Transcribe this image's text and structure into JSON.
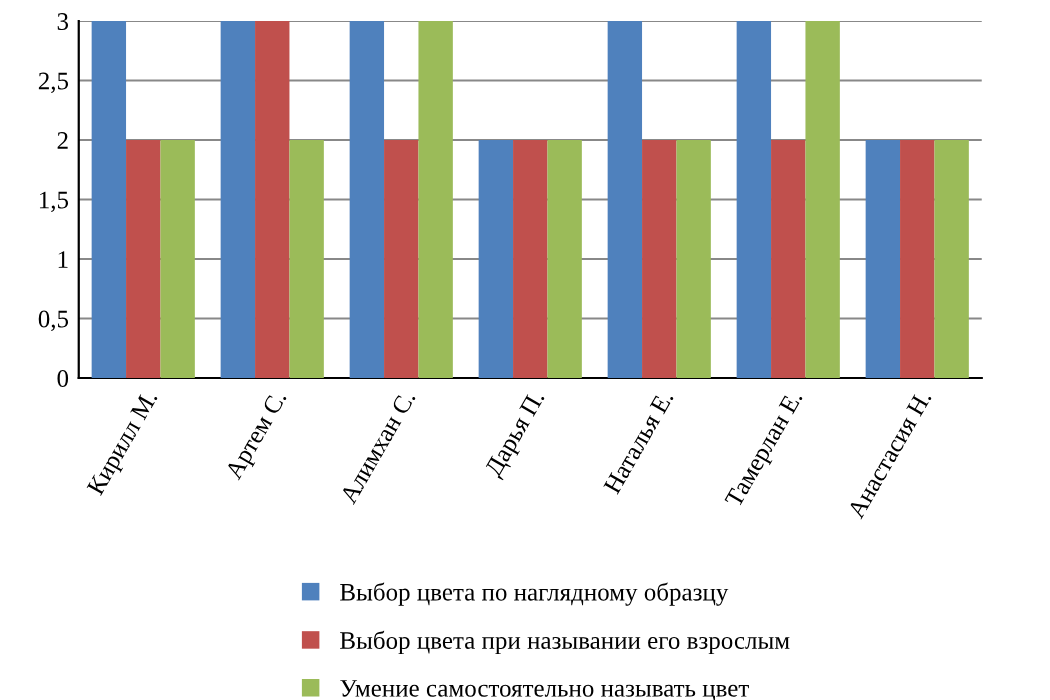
{
  "chart_data": {
    "type": "bar",
    "categories": [
      "Кирилл М.",
      "Артем С.",
      "Алимхан С.",
      "Дарья П.",
      "Наталья Е.",
      "Тамерлан Е.",
      "Анастасия Н."
    ],
    "series": [
      {
        "name": "Выбор цвета по наглядному образцу",
        "color": "#4f81bd",
        "values": [
          3,
          3,
          3,
          2,
          3,
          3,
          2
        ]
      },
      {
        "name": "Выбор цвета при назывании его взрослым",
        "color": "#c0504d",
        "values": [
          2,
          3,
          2,
          2,
          2,
          2,
          2
        ]
      },
      {
        "name": "Умение самостоятельно называть цвет",
        "color": "#9bbb59",
        "values": [
          2,
          2,
          3,
          2,
          2,
          3,
          2
        ]
      }
    ],
    "ylim": [
      0,
      3
    ],
    "yticks": [
      {
        "value": 0,
        "label": "0"
      },
      {
        "value": 0.5,
        "label": "0,5"
      },
      {
        "value": 1,
        "label": "1"
      },
      {
        "value": 1.5,
        "label": "1,5"
      },
      {
        "value": 2,
        "label": "2"
      },
      {
        "value": 2.5,
        "label": "2,5"
      },
      {
        "value": 3,
        "label": "3"
      }
    ],
    "grid": "y",
    "legend": "bottom"
  }
}
